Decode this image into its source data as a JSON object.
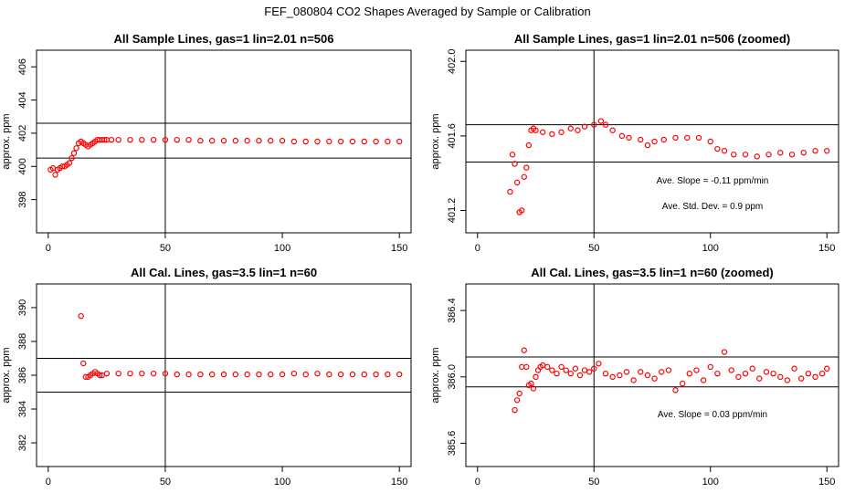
{
  "page_title": "FEF_080804  CO2 Shapes Averaged by Sample or Calibration",
  "chart_data": [
    {
      "type": "scatter",
      "title": "All Sample Lines, gas=1 lin=2.01 n=506",
      "xlabel": "",
      "ylabel": "approx. ppm",
      "xlim": [
        -5,
        155
      ],
      "ylim": [
        396,
        407
      ],
      "xticks": [
        0,
        50,
        100,
        150
      ],
      "xtick_labels": [
        "0",
        "50",
        "100",
        "150"
      ],
      "yticks": [
        398,
        400,
        402,
        404,
        406
      ],
      "ytick_labels": [
        "398",
        "400",
        "402",
        "404",
        "406"
      ],
      "vline": 50,
      "hlines": [
        400.5,
        402.6
      ],
      "marker_color": "#ff0000",
      "annotations": [],
      "series": [
        {
          "x": [
            1,
            2,
            3,
            4,
            5,
            6,
            7,
            8,
            9,
            10,
            11,
            12,
            13,
            14,
            15,
            16,
            17,
            18,
            19,
            20,
            21,
            22,
            23,
            24,
            25,
            27,
            30,
            35,
            40,
            45,
            50,
            55,
            60,
            65,
            70,
            75,
            80,
            85,
            90,
            95,
            100,
            105,
            110,
            115,
            120,
            125,
            130,
            135,
            140,
            145,
            150
          ],
          "y": [
            399.8,
            399.9,
            399.5,
            399.8,
            399.9,
            400.0,
            400.0,
            400.1,
            400.2,
            400.5,
            400.8,
            401.1,
            401.4,
            401.5,
            401.4,
            401.3,
            401.2,
            401.3,
            401.4,
            401.5,
            401.6,
            401.6,
            401.6,
            401.6,
            401.6,
            401.6,
            401.6,
            401.6,
            401.6,
            401.6,
            401.6,
            401.6,
            401.6,
            401.55,
            401.55,
            401.55,
            401.55,
            401.55,
            401.55,
            401.55,
            401.55,
            401.5,
            401.5,
            401.5,
            401.5,
            401.5,
            401.5,
            401.5,
            401.5,
            401.5,
            401.5
          ]
        }
      ]
    },
    {
      "type": "scatter",
      "title": "All Sample Lines, gas=1 lin=2.01 n=506 (zoomed)",
      "xlabel": "",
      "ylabel": "approx. ppm",
      "xlim": [
        -5,
        155
      ],
      "ylim": [
        401.08,
        402.06
      ],
      "xticks": [
        0,
        50,
        100,
        150
      ],
      "xtick_labels": [
        "0",
        "50",
        "100",
        "150"
      ],
      "yticks": [
        401.2,
        401.6,
        402.0
      ],
      "ytick_labels": [
        "401.2",
        "401.6",
        "402.0"
      ],
      "vline": 50,
      "hlines": [
        401.46,
        401.66
      ],
      "marker_color": "#ff0000",
      "annotations": [
        "Ave. Slope = -0.11  ppm/min",
        "Ave. Std. Dev. = 0.9  ppm"
      ],
      "series": [
        {
          "x": [
            14,
            15,
            16,
            17,
            18,
            19,
            20,
            21,
            22,
            23,
            24,
            25,
            28,
            32,
            36,
            40,
            43,
            46,
            50,
            53,
            55,
            58,
            62,
            65,
            70,
            73,
            76,
            80,
            85,
            90,
            95,
            100,
            103,
            106,
            110,
            115,
            120,
            125,
            130,
            135,
            140,
            145,
            150
          ],
          "y": [
            401.3,
            401.5,
            401.45,
            401.35,
            401.19,
            401.2,
            401.38,
            401.43,
            401.55,
            401.63,
            401.64,
            401.63,
            401.62,
            401.61,
            401.62,
            401.64,
            401.63,
            401.65,
            401.66,
            401.68,
            401.66,
            401.63,
            401.6,
            401.59,
            401.58,
            401.55,
            401.57,
            401.58,
            401.59,
            401.59,
            401.59,
            401.57,
            401.53,
            401.52,
            401.5,
            401.5,
            401.49,
            401.5,
            401.51,
            401.5,
            401.51,
            401.52,
            401.52
          ]
        }
      ]
    },
    {
      "type": "scatter",
      "title": "All Cal. Lines, gas=3.5 lin=1 n=60",
      "xlabel": "",
      "ylabel": "approx. ppm",
      "xlim": [
        -5,
        155
      ],
      "ylim": [
        380.6,
        391.4
      ],
      "xticks": [
        0,
        50,
        100,
        150
      ],
      "xtick_labels": [
        "0",
        "50",
        "100",
        "150"
      ],
      "yticks": [
        382,
        384,
        386,
        388,
        390
      ],
      "ytick_labels": [
        "382",
        "384",
        "386",
        "388",
        "390"
      ],
      "vline": 50,
      "hlines": [
        385.0,
        387.0
      ],
      "marker_color": "#ff0000",
      "annotations": [],
      "series": [
        {
          "x": [
            14,
            15,
            16,
            17,
            18,
            19,
            20,
            21,
            22,
            23,
            25,
            30,
            35,
            40,
            45,
            50,
            55,
            60,
            65,
            70,
            75,
            80,
            85,
            90,
            95,
            100,
            105,
            110,
            115,
            120,
            125,
            130,
            135,
            140,
            145,
            150
          ],
          "y": [
            389.5,
            386.7,
            385.9,
            385.9,
            386.0,
            386.1,
            386.2,
            386.1,
            386.0,
            386.0,
            386.1,
            386.1,
            386.1,
            386.1,
            386.1,
            386.1,
            386.05,
            386.05,
            386.05,
            386.05,
            386.05,
            386.05,
            386.05,
            386.05,
            386.05,
            386.05,
            386.1,
            386.05,
            386.1,
            386.05,
            386.05,
            386.05,
            386.05,
            386.05,
            386.05,
            386.05
          ]
        }
      ]
    },
    {
      "type": "scatter",
      "title": "All Cal. Lines, gas=3.5 lin=1 n=60 (zoomed)",
      "xlabel": "",
      "ylabel": "approx. ppm",
      "xlim": [
        -5,
        155
      ],
      "ylim": [
        385.46,
        386.56
      ],
      "xticks": [
        0,
        50,
        100,
        150
      ],
      "xtick_labels": [
        "0",
        "50",
        "100",
        "150"
      ],
      "yticks": [
        385.6,
        386.0,
        386.4
      ],
      "ytick_labels": [
        "385.6",
        "386.0",
        "386.4"
      ],
      "vline": 50,
      "hlines": [
        385.94,
        386.12
      ],
      "marker_color": "#ff0000",
      "annotations": [
        "Ave. Slope = 0.03  ppm/min"
      ],
      "series": [
        {
          "x": [
            16,
            17,
            18,
            19,
            20,
            21,
            22,
            23,
            24,
            25,
            26,
            27,
            28,
            30,
            32,
            34,
            36,
            38,
            40,
            42,
            44,
            46,
            48,
            50,
            52,
            55,
            58,
            61,
            64,
            67,
            70,
            73,
            76,
            79,
            82,
            85,
            88,
            91,
            94,
            97,
            100,
            103,
            106,
            109,
            112,
            115,
            118,
            121,
            124,
            127,
            130,
            133,
            136,
            139,
            142,
            145,
            148,
            150
          ],
          "y": [
            385.8,
            385.86,
            385.9,
            386.06,
            386.16,
            386.06,
            385.95,
            385.96,
            385.93,
            386.0,
            386.04,
            386.06,
            386.07,
            386.06,
            386.04,
            386.02,
            386.06,
            386.04,
            386.02,
            386.05,
            386.01,
            386.04,
            386.03,
            386.05,
            386.08,
            386.02,
            386.0,
            386.01,
            386.03,
            385.98,
            386.03,
            386.01,
            385.99,
            386.03,
            386.04,
            385.92,
            385.96,
            386.02,
            386.04,
            385.98,
            386.06,
            386.02,
            386.15,
            386.04,
            386.0,
            386.02,
            386.05,
            385.99,
            386.03,
            386.02,
            386.0,
            385.98,
            386.05,
            385.99,
            386.02,
            386.0,
            386.02,
            386.05
          ]
        }
      ]
    }
  ]
}
